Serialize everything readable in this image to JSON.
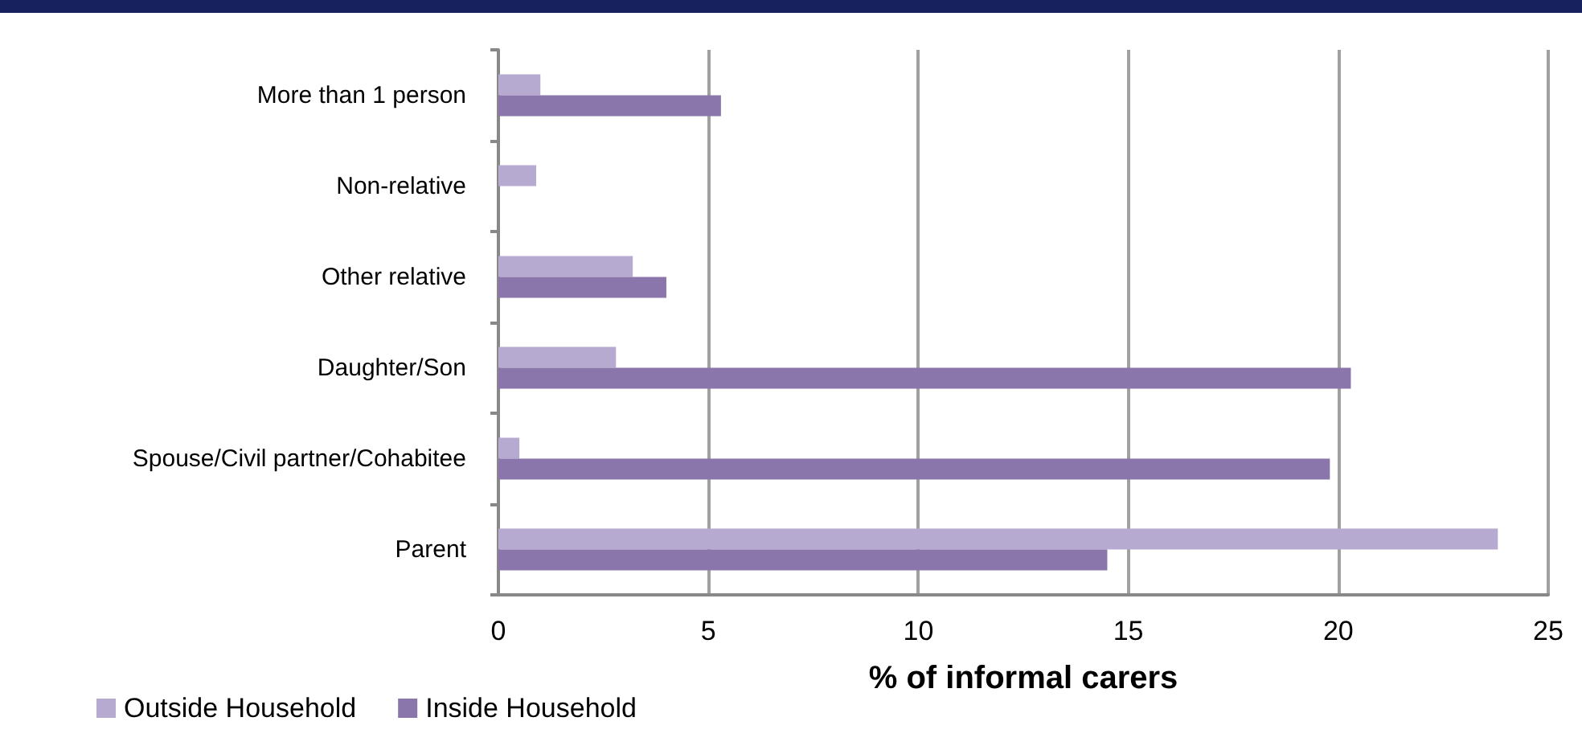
{
  "chart_data": {
    "type": "bar",
    "orientation": "horizontal",
    "xlabel": "% of informal carers",
    "categories": [
      "More than 1 person",
      "Non-relative",
      "Other relative",
      "Daughter/Son",
      "Spouse/Civil partner/Cohabitee",
      "Parent"
    ],
    "series": [
      {
        "name": "Outside Household",
        "color": "#b7aad0",
        "values": [
          1.0,
          0.9,
          3.2,
          2.8,
          0.5,
          23.8
        ]
      },
      {
        "name": "Inside Household",
        "color": "#8a76aa",
        "values": [
          5.3,
          null,
          4.0,
          20.3,
          19.8,
          14.5
        ]
      }
    ],
    "xlim": [
      0,
      25
    ],
    "xticks": [
      0,
      5,
      10,
      15,
      20,
      25
    ],
    "grid": "x",
    "legend": "bottom left"
  }
}
